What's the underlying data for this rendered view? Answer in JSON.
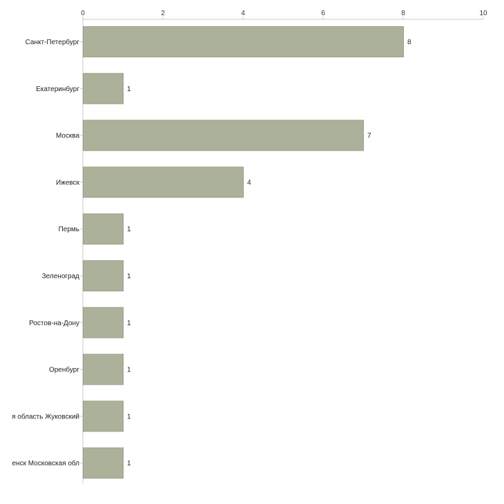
{
  "chart_data": {
    "type": "bar",
    "orientation": "horizontal",
    "title": "",
    "xlabel": "",
    "ylabel": "",
    "xlim": [
      0,
      10
    ],
    "x_ticks": [
      0,
      2,
      4,
      6,
      8,
      10
    ],
    "grid": false,
    "legend": "none",
    "bar_color": "#acb29a",
    "bar_border_color": "#9aa088",
    "categories": [
      "Санкт-Петербург",
      "Екатеринбург",
      "Москва",
      "Ижевск",
      "Пермь",
      "Зеленоград",
      "Ростов-на-Дону",
      "Оренбург",
      "я область Жуковский",
      "енск Московская обл"
    ],
    "values": [
      8,
      1,
      7,
      4,
      1,
      1,
      1,
      1,
      1,
      1
    ]
  }
}
